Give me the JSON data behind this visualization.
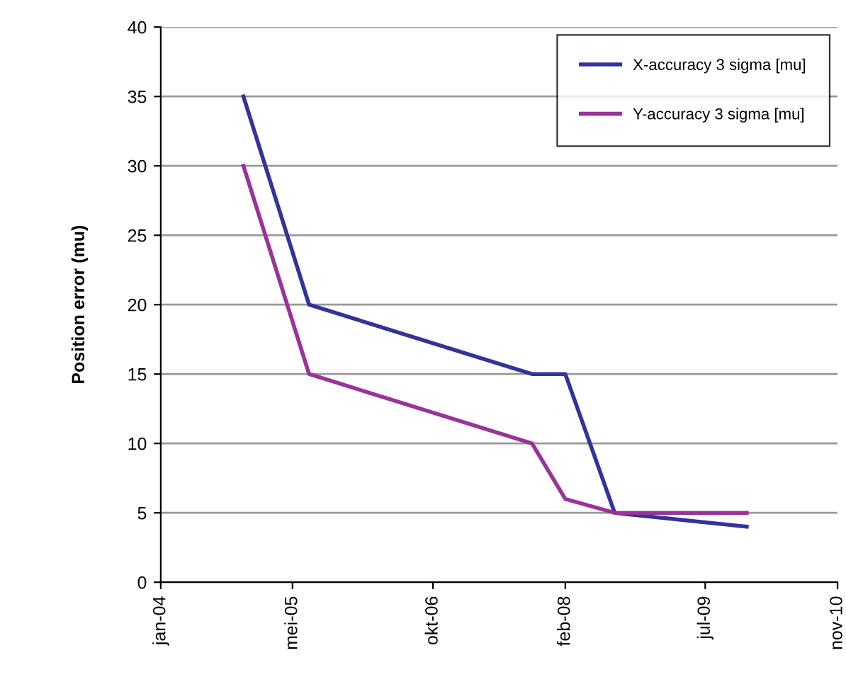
{
  "chart_data": {
    "type": "line",
    "ylabel": "Position error (mu)",
    "xlim": [
      "2004-01",
      "2010-11"
    ],
    "xticks": [
      {
        "value": "2004-01",
        "label": "jan-04"
      },
      {
        "value": "2005-05",
        "label": "mei-05"
      },
      {
        "value": "2006-10",
        "label": "okt-06"
      },
      {
        "value": "2008-02",
        "label": "feb-08"
      },
      {
        "value": "2009-07",
        "label": "jul-09"
      },
      {
        "value": "2010-11",
        "label": "nov-10"
      }
    ],
    "ylim": [
      0,
      40
    ],
    "yticks": [
      0,
      5,
      10,
      15,
      20,
      25,
      30,
      35,
      40
    ],
    "grid": "y",
    "legend": "top right",
    "marker": "none",
    "line_style": "solid",
    "series": [
      {
        "name": "X-accuracy 3 sigma [mu]",
        "color": "#333399",
        "x": [
          "2004-11",
          "2005-07",
          "2007-10",
          "2008-02",
          "2008-08",
          "2009-12"
        ],
        "values": [
          35,
          20,
          15,
          15,
          5,
          4
        ]
      },
      {
        "name": "Y-accuracy 3 sigma [mu]",
        "color": "#993399",
        "x": [
          "2004-11",
          "2005-07",
          "2007-10",
          "2008-02",
          "2008-08",
          "2009-12"
        ],
        "values": [
          30,
          15,
          10,
          6,
          5,
          5
        ]
      }
    ]
  }
}
